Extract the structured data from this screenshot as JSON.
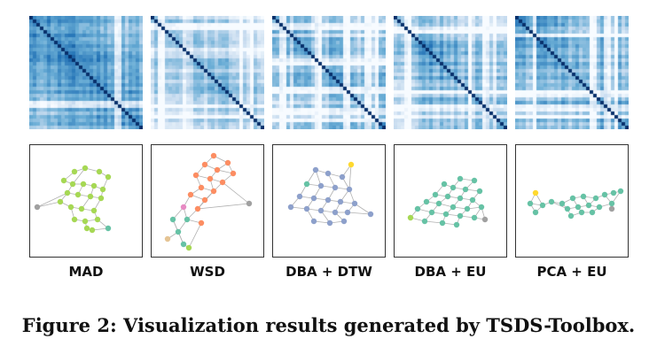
{
  "panels": [
    {
      "label": "MAD",
      "heatmap_style": "mad",
      "node_color": "#a6d854"
    },
    {
      "label": "WSD",
      "heatmap_style": "wsd",
      "node_color": "#fc8d62"
    },
    {
      "label": "DBA + DTW",
      "heatmap_style": "dba_dtw",
      "node_color": "#8da0cb"
    },
    {
      "label": "DBA + EU",
      "heatmap_style": "dba_eu",
      "node_color": "#66c2a5"
    },
    {
      "label": "PCA + EU",
      "heatmap_style": "pca_eu",
      "node_color": "#66c2a5"
    }
  ],
  "colors": {
    "heatmap_dark": "#08306b",
    "heatmap_light": "#f7fbff",
    "edge": "#b0b0b0",
    "outlier_gray": "#a0a0a0",
    "highlight_yellow": "#ffd92f",
    "highlight_pink": "#e78ac3",
    "highlight_tan": "#e5c494"
  },
  "caption": "Figure 2: Visualization results generated by TSDS-Toolbox."
}
